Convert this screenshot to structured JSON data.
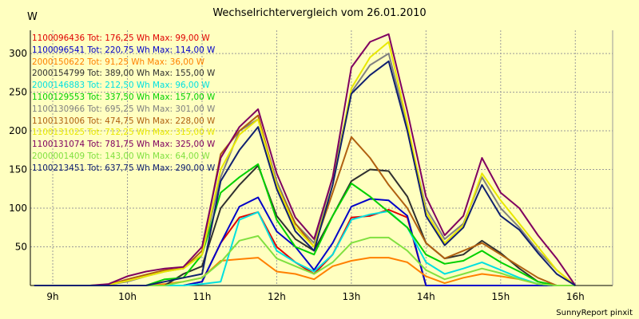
{
  "chart_data": {
    "type": "line",
    "title": "Wechselrichtervergleich vom 26.01.2010",
    "ylabel": "W",
    "ylim": [
      0,
      330
    ],
    "yticks": [
      50,
      100,
      150,
      200,
      250,
      300
    ],
    "xlim": [
      8.7,
      16.5
    ],
    "xticks": [
      "9h",
      "10h",
      "11h",
      "12h",
      "13h",
      "14h",
      "15h",
      "16h"
    ],
    "grid": true,
    "legend_position": "top-left",
    "footer": "SunnyReport pinxit",
    "x": [
      8.75,
      9.0,
      9.25,
      9.5,
      9.75,
      10.0,
      10.25,
      10.5,
      10.75,
      11.0,
      11.25,
      11.5,
      11.75,
      12.0,
      12.25,
      12.5,
      12.75,
      13.0,
      13.25,
      13.5,
      13.75,
      14.0,
      14.25,
      14.5,
      14.75,
      15.0,
      15.25,
      15.5,
      15.75,
      16.0
    ],
    "series": [
      {
        "name": "1100096436 Tot: 176,25 Wh Max: 99,00 W",
        "color": "#e00000",
        "values": [
          0,
          0,
          0,
          0,
          0,
          0,
          0,
          0,
          0,
          5,
          55,
          88,
          95,
          50,
          30,
          15,
          40,
          88,
          90,
          98,
          88,
          0,
          0,
          0,
          0,
          0,
          0,
          0,
          0,
          0
        ]
      },
      {
        "name": "1100096541 Tot: 220,75 Wh Max: 114,00 W",
        "color": "#0000c8",
        "values": [
          0,
          0,
          0,
          0,
          0,
          0,
          0,
          0,
          0,
          5,
          55,
          102,
          114,
          70,
          50,
          20,
          55,
          102,
          112,
          110,
          90,
          0,
          0,
          0,
          0,
          0,
          0,
          0,
          0,
          0
        ]
      },
      {
        "name": "2000150622 Tot: 91,25 Wh Max: 36,00 W",
        "color": "#ff8000",
        "values": [
          0,
          0,
          0,
          0,
          0,
          0,
          0,
          2,
          5,
          10,
          32,
          34,
          36,
          18,
          15,
          8,
          25,
          32,
          36,
          36,
          30,
          12,
          3,
          10,
          15,
          12,
          8,
          2,
          0,
          0
        ]
      },
      {
        "name": "2000154799 Tot: 389,00 Wh Max: 155,00 W",
        "color": "#303030",
        "values": [
          0,
          0,
          0,
          0,
          0,
          0,
          0,
          0,
          15,
          25,
          100,
          130,
          155,
          90,
          60,
          45,
          90,
          135,
          150,
          148,
          115,
          55,
          35,
          40,
          58,
          42,
          22,
          5,
          0,
          0
        ]
      },
      {
        "name": "2000146883 Tot: 212,50 Wh Max: 96,00 W",
        "color": "#00e0e0",
        "values": [
          0,
          0,
          0,
          0,
          0,
          0,
          0,
          0,
          0,
          2,
          5,
          85,
          95,
          45,
          30,
          18,
          40,
          85,
          92,
          96,
          75,
          30,
          15,
          22,
          30,
          20,
          10,
          2,
          0,
          0
        ]
      },
      {
        "name": "1100129553 Tot: 337,50 Wh Max: 157,00 W",
        "color": "#00d000",
        "values": [
          0,
          0,
          0,
          0,
          0,
          0,
          0,
          8,
          10,
          40,
          120,
          140,
          157,
          85,
          50,
          40,
          90,
          132,
          115,
          95,
          75,
          40,
          28,
          32,
          45,
          30,
          18,
          5,
          0,
          0
        ]
      },
      {
        "name": "1100130966 Tot: 695,25 Wh Max: 301,00 W",
        "color": "#808080",
        "values": [
          0,
          0,
          0,
          0,
          1,
          5,
          12,
          18,
          22,
          40,
          140,
          200,
          215,
          135,
          80,
          55,
          140,
          250,
          285,
          300,
          205,
          100,
          60,
          80,
          140,
          100,
          75,
          45,
          20,
          0
        ]
      },
      {
        "name": "1100131006 Tot: 474,75 Wh Max: 228,00 W",
        "color": "#b06010",
        "values": [
          0,
          0,
          0,
          0,
          1,
          8,
          14,
          20,
          22,
          45,
          170,
          200,
          220,
          130,
          80,
          50,
          120,
          192,
          165,
          130,
          100,
          55,
          35,
          45,
          55,
          40,
          25,
          10,
          0,
          0
        ]
      },
      {
        "name": "1100131025 Tot: 712,25 Wh Max: 315,00 W",
        "color": "#e8e800",
        "values": [
          0,
          0,
          0,
          0,
          1,
          6,
          12,
          18,
          22,
          40,
          150,
          195,
          215,
          130,
          75,
          50,
          130,
          255,
          295,
          315,
          210,
          95,
          55,
          78,
          145,
          110,
          80,
          50,
          20,
          0
        ]
      },
      {
        "name": "1100131074 Tot: 781,75 Wh Max: 325,00 W",
        "color": "#800060",
        "values": [
          0,
          0,
          0,
          0,
          2,
          12,
          18,
          22,
          24,
          50,
          165,
          205,
          228,
          145,
          88,
          60,
          140,
          282,
          315,
          325,
          225,
          115,
          65,
          90,
          165,
          120,
          100,
          65,
          35,
          0
        ]
      },
      {
        "name": "2000001409 Tot: 143,00 Wh Max: 64,00 W",
        "color": "#80e040",
        "values": [
          0,
          0,
          0,
          0,
          0,
          0,
          0,
          0,
          5,
          10,
          30,
          58,
          64,
          35,
          25,
          15,
          30,
          55,
          62,
          62,
          45,
          20,
          8,
          15,
          22,
          16,
          8,
          2,
          0,
          0
        ]
      },
      {
        "name": "1100213451 Tot: 637,75 Wh Max: 290,00 W",
        "color": "#102070",
        "values": [
          0,
          0,
          0,
          0,
          0,
          0,
          0,
          5,
          10,
          15,
          135,
          175,
          205,
          125,
          70,
          45,
          130,
          248,
          272,
          290,
          200,
          90,
          52,
          75,
          130,
          90,
          72,
          42,
          15,
          0
        ]
      }
    ]
  }
}
